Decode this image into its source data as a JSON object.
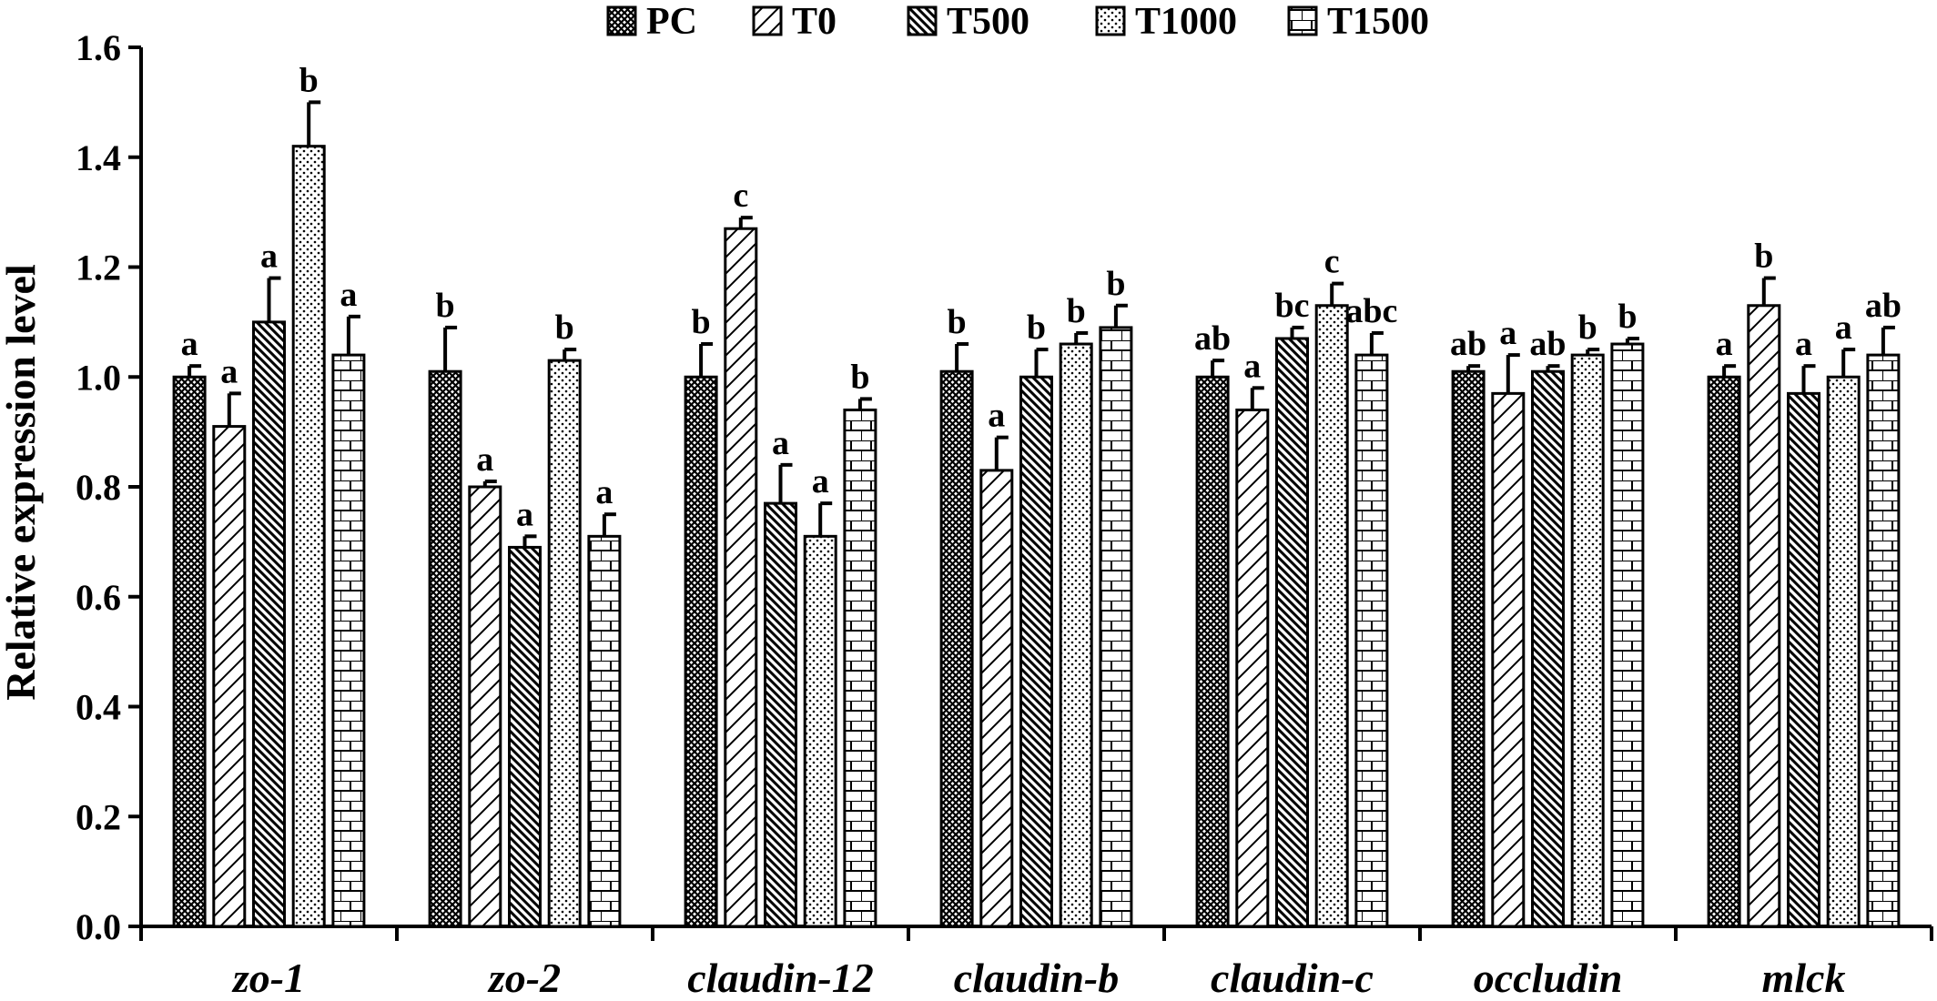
{
  "chart_data": {
    "type": "bar",
    "title": "",
    "xlabel": "",
    "ylabel": "Relative expression level",
    "ylim": [
      0,
      1.6
    ],
    "yticks": [
      "0.0",
      "0.2",
      "0.4",
      "0.6",
      "0.8",
      "1.0",
      "1.2",
      "1.4",
      "1.6"
    ],
    "legend_position": "top",
    "grid": false,
    "categories": [
      "zo-1",
      "zo-2",
      "claudin-12",
      "claudin-b",
      "claudin-c",
      "occludin",
      "mlck"
    ],
    "series": [
      {
        "name": "PC",
        "pattern": "crosshatch",
        "values": [
          1.0,
          1.01,
          1.0,
          1.01,
          1.0,
          1.01,
          1.0
        ],
        "errors": [
          0.02,
          0.08,
          0.06,
          0.05,
          0.03,
          0.01,
          0.02
        ],
        "labels": [
          "a",
          "b",
          "b",
          "b",
          "ab",
          "ab",
          "a"
        ]
      },
      {
        "name": "T0",
        "pattern": "wide-diagonal",
        "values": [
          0.91,
          0.8,
          1.27,
          0.83,
          0.94,
          0.97,
          1.13
        ],
        "errors": [
          0.06,
          0.01,
          0.02,
          0.06,
          0.04,
          0.07,
          0.05
        ],
        "labels": [
          "a",
          "a",
          "c",
          "a",
          "a",
          "a",
          "b"
        ]
      },
      {
        "name": "T500",
        "pattern": "dense-diagonal",
        "values": [
          1.1,
          0.69,
          0.77,
          1.0,
          1.07,
          1.01,
          0.97
        ],
        "errors": [
          0.08,
          0.02,
          0.07,
          0.05,
          0.02,
          0.01,
          0.05
        ],
        "labels": [
          "a",
          "a",
          "a",
          "b",
          "bc",
          "ab",
          "a"
        ]
      },
      {
        "name": "T1000",
        "pattern": "dots",
        "values": [
          1.42,
          1.03,
          0.71,
          1.06,
          1.13,
          1.04,
          1.0
        ],
        "errors": [
          0.08,
          0.02,
          0.06,
          0.02,
          0.04,
          0.01,
          0.05
        ],
        "labels": [
          "b",
          "b",
          "a",
          "b",
          "c",
          "b",
          "a"
        ]
      },
      {
        "name": "T1500",
        "pattern": "brick",
        "values": [
          1.04,
          0.71,
          0.94,
          1.09,
          1.04,
          1.06,
          1.04
        ],
        "errors": [
          0.07,
          0.04,
          0.02,
          0.04,
          0.04,
          0.01,
          0.05
        ],
        "labels": [
          "a",
          "a",
          "b",
          "b",
          "abc",
          "b",
          "ab"
        ]
      }
    ]
  }
}
